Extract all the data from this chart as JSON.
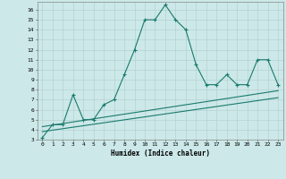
{
  "xlabel": "Humidex (Indice chaleur)",
  "background_color": "#cce8e8",
  "line_color": "#1a7a6e",
  "x_data": [
    0,
    1,
    2,
    3,
    4,
    5,
    6,
    7,
    8,
    9,
    10,
    11,
    12,
    13,
    14,
    15,
    16,
    17,
    18,
    19,
    20,
    21,
    22,
    23
  ],
  "y_data": [
    3.2,
    4.5,
    4.5,
    7.5,
    5.0,
    5.0,
    6.5,
    7.0,
    9.5,
    12.0,
    15.0,
    15.0,
    16.5,
    15.0,
    14.0,
    10.5,
    8.5,
    8.5,
    9.5,
    8.5,
    8.5,
    11.0,
    11.0,
    8.5
  ],
  "trend1_x": [
    0,
    23
  ],
  "trend1_y": [
    3.8,
    7.2
  ],
  "trend2_x": [
    0,
    23
  ],
  "trend2_y": [
    4.3,
    7.9
  ],
  "xlim": [
    -0.5,
    23.5
  ],
  "ylim": [
    3,
    16.8
  ],
  "yticks": [
    3,
    4,
    5,
    6,
    7,
    8,
    9,
    10,
    11,
    12,
    13,
    14,
    15,
    16
  ],
  "xticks": [
    0,
    1,
    2,
    3,
    4,
    5,
    6,
    7,
    8,
    9,
    10,
    11,
    12,
    13,
    14,
    15,
    16,
    17,
    18,
    19,
    20,
    21,
    22,
    23
  ]
}
